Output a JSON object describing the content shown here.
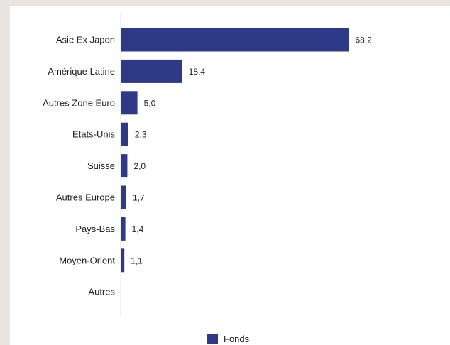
{
  "chart_data": {
    "type": "bar",
    "orientation": "horizontal",
    "categories": [
      "Asie Ex Japon",
      "Amérique Latine",
      "Autres Zone Euro",
      "Etats-Unis",
      "Suisse",
      "Autres Europe",
      "Pays-Bas",
      "Moyen-Orient",
      "Autres"
    ],
    "values": [
      68.2,
      18.4,
      5.0,
      2.3,
      2.0,
      1.7,
      1.4,
      1.1,
      null
    ],
    "value_labels": [
      "68,2",
      "18,4",
      "5,0",
      "2,3",
      "2,0",
      "1,7",
      "1,4",
      "1,1",
      ""
    ],
    "series": [
      {
        "name": "Fonds",
        "color": "#2e3a87"
      }
    ],
    "xlim": [
      0,
      70
    ],
    "grid": false,
    "legend": "bottom-center",
    "axis_line_color": "#e6e6e6"
  }
}
